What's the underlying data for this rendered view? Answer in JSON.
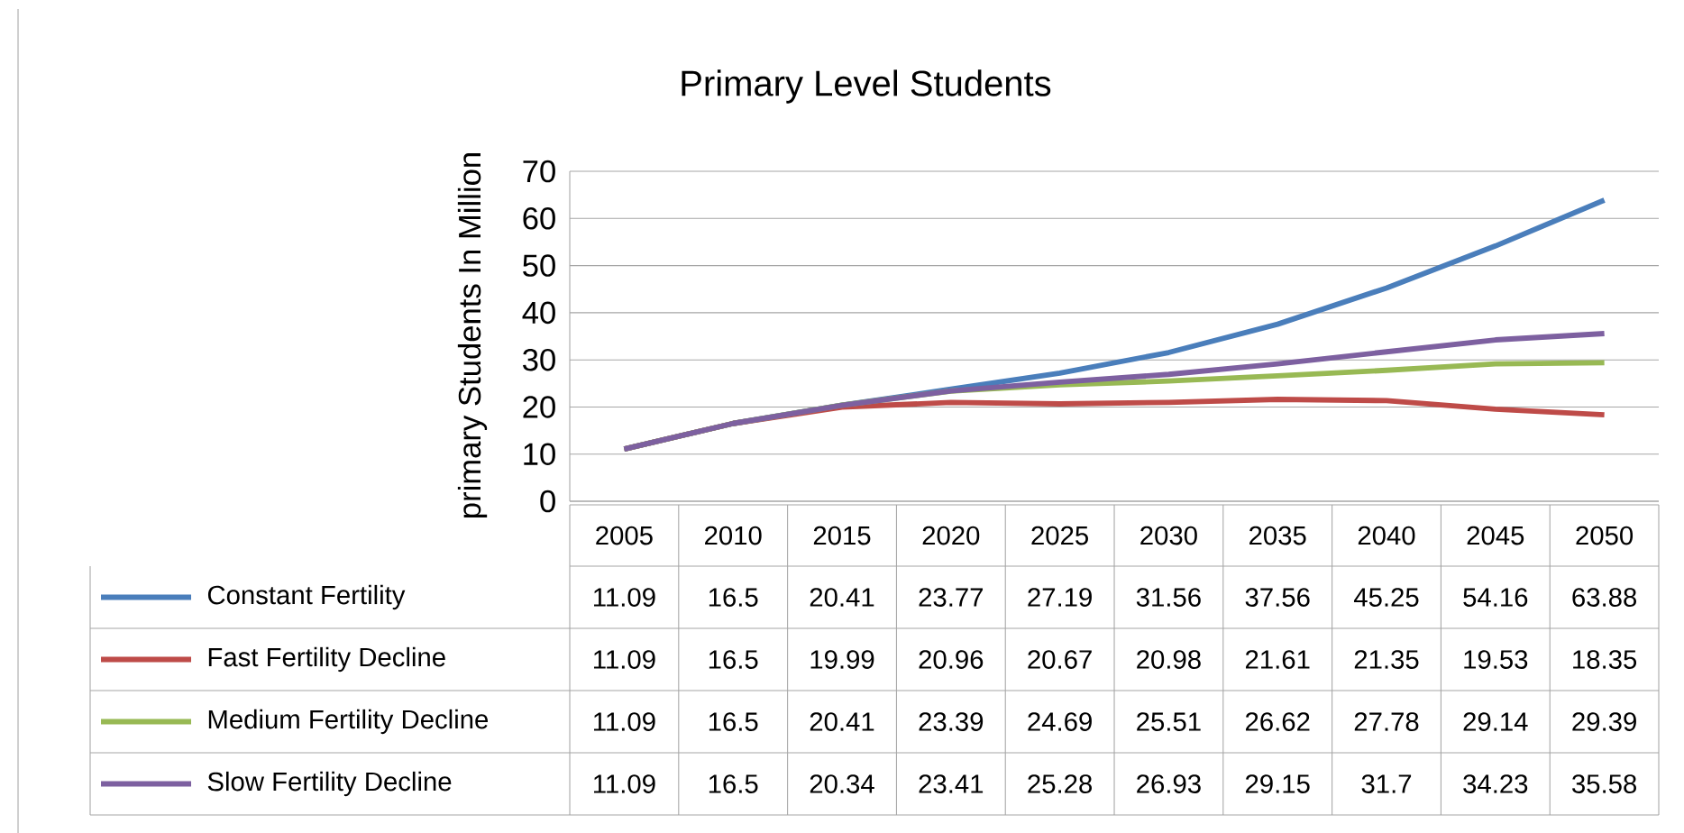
{
  "chart_data": {
    "type": "line",
    "title": "Primary Level Students",
    "ylabel": "primary Students In Million",
    "categories": [
      "2005",
      "2010",
      "2015",
      "2020",
      "2025",
      "2030",
      "2035",
      "2040",
      "2045",
      "2050"
    ],
    "series": [
      {
        "name": "Constant Fertility",
        "color": "#4a7ebb",
        "values": [
          11.09,
          16.5,
          20.41,
          23.77,
          27.19,
          31.56,
          37.56,
          45.25,
          54.16,
          63.88
        ]
      },
      {
        "name": "Fast Fertility Decline",
        "color": "#be4b48",
        "values": [
          11.09,
          16.5,
          19.99,
          20.96,
          20.67,
          20.98,
          21.61,
          21.35,
          19.53,
          18.35
        ]
      },
      {
        "name": "Medium Fertility Decline",
        "color": "#98b954",
        "values": [
          11.09,
          16.5,
          20.41,
          23.39,
          24.69,
          25.51,
          26.62,
          27.78,
          29.14,
          29.39
        ]
      },
      {
        "name": "Slow Fertility Decline",
        "color": "#7d60a0",
        "values": [
          11.09,
          16.5,
          20.34,
          23.41,
          25.28,
          26.93,
          29.15,
          31.7,
          34.23,
          35.58
        ]
      }
    ],
    "ylim": [
      0,
      70
    ],
    "yticks": [
      0,
      10,
      20,
      30,
      40,
      50,
      60,
      70
    ],
    "grid": "y",
    "legend": "bottom",
    "data_labels": true,
    "marker": "none",
    "line_style": "solid"
  }
}
